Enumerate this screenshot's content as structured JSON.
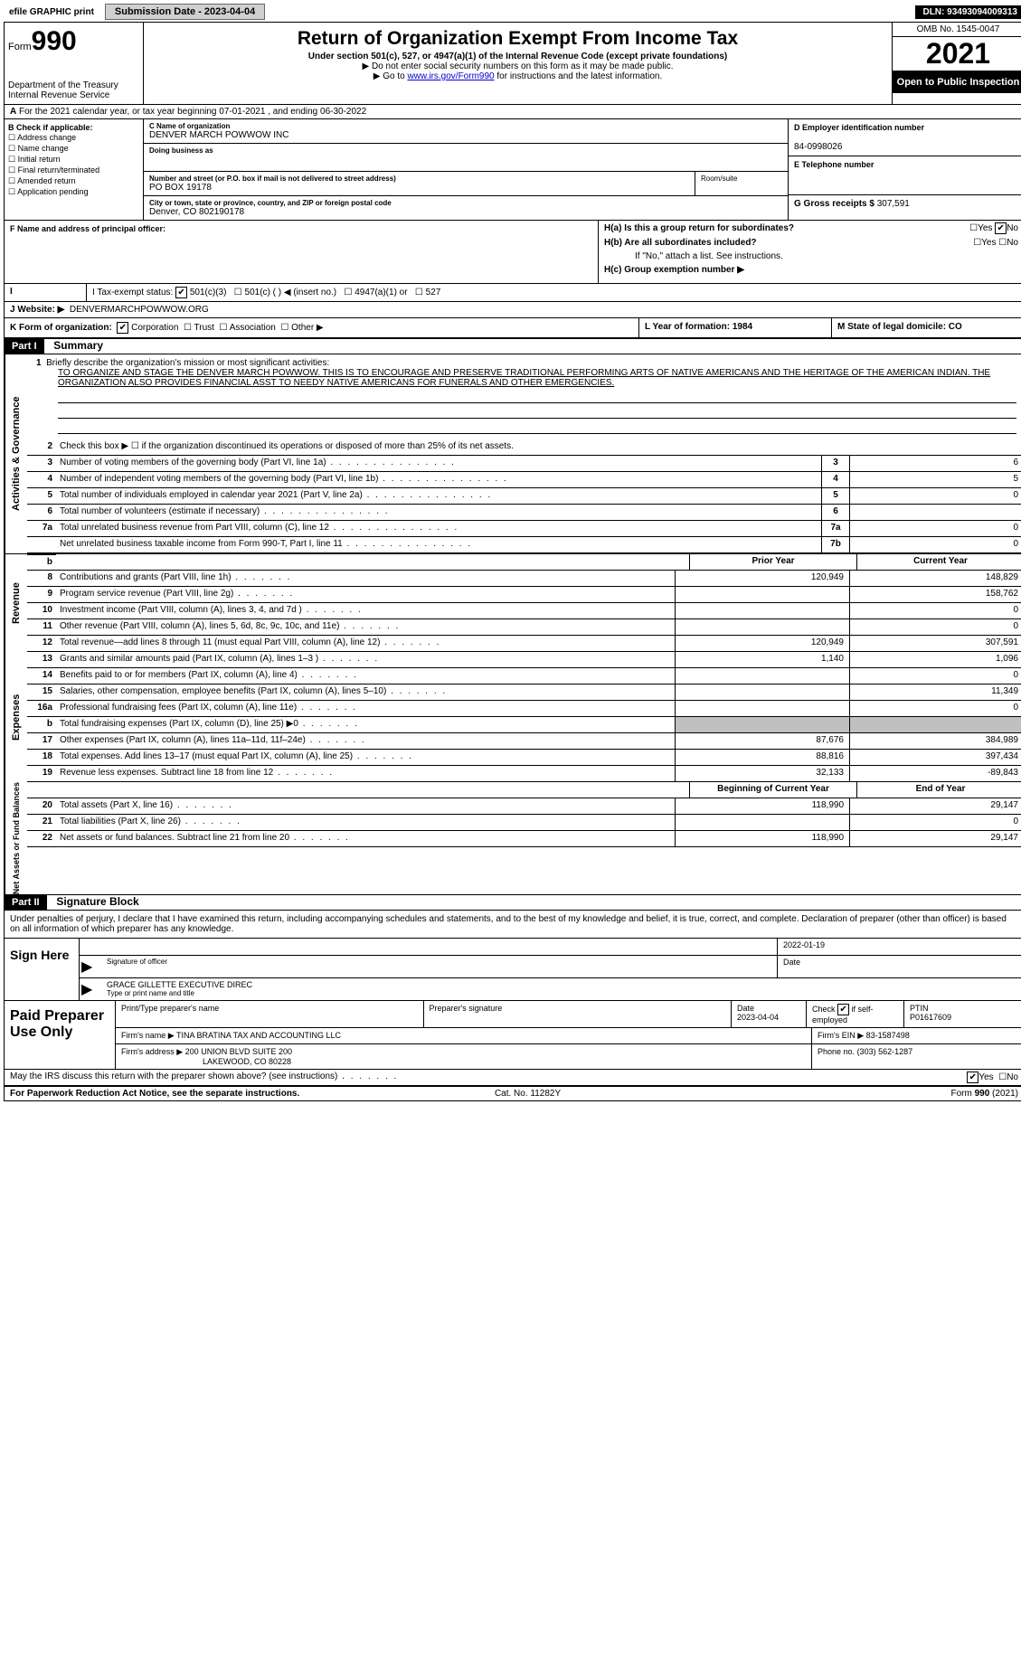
{
  "topbar": {
    "efile_label": "efile GRAPHIC print",
    "submission_label": "Submission Date - 2023-04-04",
    "dln_label": "DLN: 93493094009313"
  },
  "header": {
    "form_label": "Form",
    "form_number": "990",
    "dept": "Department of the Treasury",
    "irs": "Internal Revenue Service",
    "title": "Return of Organization Exempt From Income Tax",
    "subtitle": "Under section 501(c), 527, or 4947(a)(1) of the Internal Revenue Code (except private foundations)",
    "note1": "▶ Do not enter social security numbers on this form as it may be made public.",
    "note2_pre": "▶ Go to ",
    "note2_link": "www.irs.gov/Form990",
    "note2_post": " for instructions and the latest information.",
    "omb": "OMB No. 1545-0047",
    "year": "2021",
    "open_public": "Open to Public Inspection"
  },
  "row_a": {
    "text": "For the 2021 calendar year, or tax year beginning 07-01-2021   , and ending 06-30-2022",
    "prefix": "A"
  },
  "col_b": {
    "title": "B Check if applicable:",
    "items": [
      "Address change",
      "Name change",
      "Initial return",
      "Final return/terminated",
      "Amended return",
      "Application pending"
    ]
  },
  "col_c": {
    "name_lbl": "C Name of organization",
    "name": "DENVER MARCH POWWOW INC",
    "dba_lbl": "Doing business as",
    "dba": "",
    "addr_lbl": "Number and street (or P.O. box if mail is not delivered to street address)",
    "addr": "PO BOX 19178",
    "room_lbl": "Room/suite",
    "city_lbl": "City or town, state or province, country, and ZIP or foreign postal code",
    "city": "Denver, CO  802190178"
  },
  "col_d": {
    "ein_lbl": "D Employer identification number",
    "ein": "84-0998026",
    "phone_lbl": "E Telephone number",
    "phone": "",
    "gross_lbl": "G Gross receipts $",
    "gross": "307,591"
  },
  "col_f": {
    "lbl": "F Name and address of principal officer:",
    "val": ""
  },
  "col_h": {
    "a_lbl": "H(a)  Is this a group return for subordinates?",
    "a_yes": "Yes",
    "a_no": "No",
    "b_lbl": "H(b)  Are all subordinates included?",
    "b_note": "If \"No,\" attach a list. See instructions.",
    "c_lbl": "H(c)  Group exemption number ▶"
  },
  "row_i": {
    "lbl": "I   Tax-exempt status:",
    "opt1": "501(c)(3)",
    "opt2": "501(c) (   ) ◀ (insert no.)",
    "opt3": "4947(a)(1) or",
    "opt4": "527"
  },
  "row_j": {
    "lbl": "J   Website: ▶",
    "val": "DENVERMARCHPOWWOW.ORG"
  },
  "row_k": {
    "lbl": "K Form of organization:",
    "opts": [
      "Corporation",
      "Trust",
      "Association",
      "Other ▶"
    ]
  },
  "row_l": {
    "lbl": "L Year of formation: 1984",
    "m_lbl": "M State of legal domicile: CO"
  },
  "part1": {
    "hdr": "Part I",
    "title": "Summary",
    "line1_lbl": "1",
    "line1_text": "Briefly describe the organization's mission or most significant activities:",
    "mission": "TO ORGANIZE AND STAGE THE DENVER MARCH POWWOW. THIS IS TO ENCOURAGE AND PRESERVE TRADITIONAL PERFORMING ARTS OF NATIVE AMERICANS AND THE HERITAGE OF THE AMERICAN INDIAN. THE ORGANIZATION ALSO PROVIDES FINANCIAL ASST TO NEEDY NATIVE AMERICANS FOR FUNERALS AND OTHER EMERGENCIES.",
    "line2": "Check this box ▶ ☐  if the organization discontinued its operations or disposed of more than 25% of its net assets.",
    "gov_lines": [
      {
        "n": "3",
        "t": "Number of voting members of the governing body (Part VI, line 1a)",
        "box": "3",
        "v": "6"
      },
      {
        "n": "4",
        "t": "Number of independent voting members of the governing body (Part VI, line 1b)",
        "box": "4",
        "v": "5"
      },
      {
        "n": "5",
        "t": "Total number of individuals employed in calendar year 2021 (Part V, line 2a)",
        "box": "5",
        "v": "0"
      },
      {
        "n": "6",
        "t": "Total number of volunteers (estimate if necessary)",
        "box": "6",
        "v": ""
      },
      {
        "n": "7a",
        "t": "Total unrelated business revenue from Part VIII, column (C), line 12",
        "box": "7a",
        "v": "0"
      },
      {
        "n": "",
        "t": "Net unrelated business taxable income from Form 990-T, Part I, line 11",
        "box": "7b",
        "v": "0"
      }
    ],
    "py_hdr": "Prior Year",
    "cy_hdr": "Current Year",
    "rev_lines": [
      {
        "n": "8",
        "t": "Contributions and grants (Part VIII, line 1h)",
        "py": "120,949",
        "cy": "148,829"
      },
      {
        "n": "9",
        "t": "Program service revenue (Part VIII, line 2g)",
        "py": "",
        "cy": "158,762"
      },
      {
        "n": "10",
        "t": "Investment income (Part VIII, column (A), lines 3, 4, and 7d )",
        "py": "",
        "cy": "0"
      },
      {
        "n": "11",
        "t": "Other revenue (Part VIII, column (A), lines 5, 6d, 8c, 9c, 10c, and 11e)",
        "py": "",
        "cy": "0"
      },
      {
        "n": "12",
        "t": "Total revenue—add lines 8 through 11 (must equal Part VIII, column (A), line 12)",
        "py": "120,949",
        "cy": "307,591"
      }
    ],
    "exp_lines": [
      {
        "n": "13",
        "t": "Grants and similar amounts paid (Part IX, column (A), lines 1–3 )",
        "py": "1,140",
        "cy": "1,096"
      },
      {
        "n": "14",
        "t": "Benefits paid to or for members (Part IX, column (A), line 4)",
        "py": "",
        "cy": "0"
      },
      {
        "n": "15",
        "t": "Salaries, other compensation, employee benefits (Part IX, column (A), lines 5–10)",
        "py": "",
        "cy": "11,349"
      },
      {
        "n": "16a",
        "t": "Professional fundraising fees (Part IX, column (A), line 11e)",
        "py": "",
        "cy": "0"
      },
      {
        "n": "b",
        "t": "Total fundraising expenses (Part IX, column (D), line 25) ▶0",
        "py": "grey",
        "cy": "grey"
      },
      {
        "n": "17",
        "t": "Other expenses (Part IX, column (A), lines 11a–11d, 11f–24e)",
        "py": "87,676",
        "cy": "384,989"
      },
      {
        "n": "18",
        "t": "Total expenses. Add lines 13–17 (must equal Part IX, column (A), line 25)",
        "py": "88,816",
        "cy": "397,434"
      },
      {
        "n": "19",
        "t": "Revenue less expenses. Subtract line 18 from line 12",
        "py": "32,133",
        "cy": "-89,843"
      }
    ],
    "na_hdr1": "Beginning of Current Year",
    "na_hdr2": "End of Year",
    "na_lines": [
      {
        "n": "20",
        "t": "Total assets (Part X, line 16)",
        "py": "118,990",
        "cy": "29,147"
      },
      {
        "n": "21",
        "t": "Total liabilities (Part X, line 26)",
        "py": "",
        "cy": "0"
      },
      {
        "n": "22",
        "t": "Net assets or fund balances. Subtract line 21 from line 20",
        "py": "118,990",
        "cy": "29,147"
      }
    ],
    "side_gov": "Activities & Governance",
    "side_rev": "Revenue",
    "side_exp": "Expenses",
    "side_na": "Net Assets or Fund Balances"
  },
  "part2": {
    "hdr": "Part II",
    "title": "Signature Block",
    "decl": "Under penalties of perjury, I declare that I have examined this return, including accompanying schedules and statements, and to the best of my knowledge and belief, it is true, correct, and complete. Declaration of preparer (other than officer) is based on all information of which preparer has any knowledge."
  },
  "sign": {
    "side": "Sign Here",
    "sig_lbl": "Signature of officer",
    "date": "2022-01-19",
    "date_lbl": "Date",
    "name": "GRACE GILLETTE  EXECUTIVE DIREC",
    "name_lbl": "Type or print name and title"
  },
  "prep": {
    "side": "Paid Preparer Use Only",
    "h1": "Print/Type preparer's name",
    "h2": "Preparer's signature",
    "h3": "Date",
    "date": "2023-04-04",
    "h4_pre": "Check",
    "h4_post": "if self-employed",
    "h5": "PTIN",
    "ptin": "P01617609",
    "firm_lbl": "Firm's name    ▶",
    "firm": "TINA BRATINA TAX AND ACCOUNTING LLC",
    "ein_lbl": "Firm's EIN ▶",
    "ein": "83-1587498",
    "addr_lbl": "Firm's address ▶",
    "addr1": "200 UNION BLVD SUITE 200",
    "addr2": "LAKEWOOD, CO  80228",
    "phone_lbl": "Phone no.",
    "phone": "(303) 562-1287"
  },
  "footer": {
    "q": "May the IRS discuss this return with the preparer shown above? (see instructions)",
    "yes": "Yes",
    "no": "No",
    "pra": "For Paperwork Reduction Act Notice, see the separate instructions.",
    "cat": "Cat. No. 11282Y",
    "form": "Form 990 (2021)"
  }
}
